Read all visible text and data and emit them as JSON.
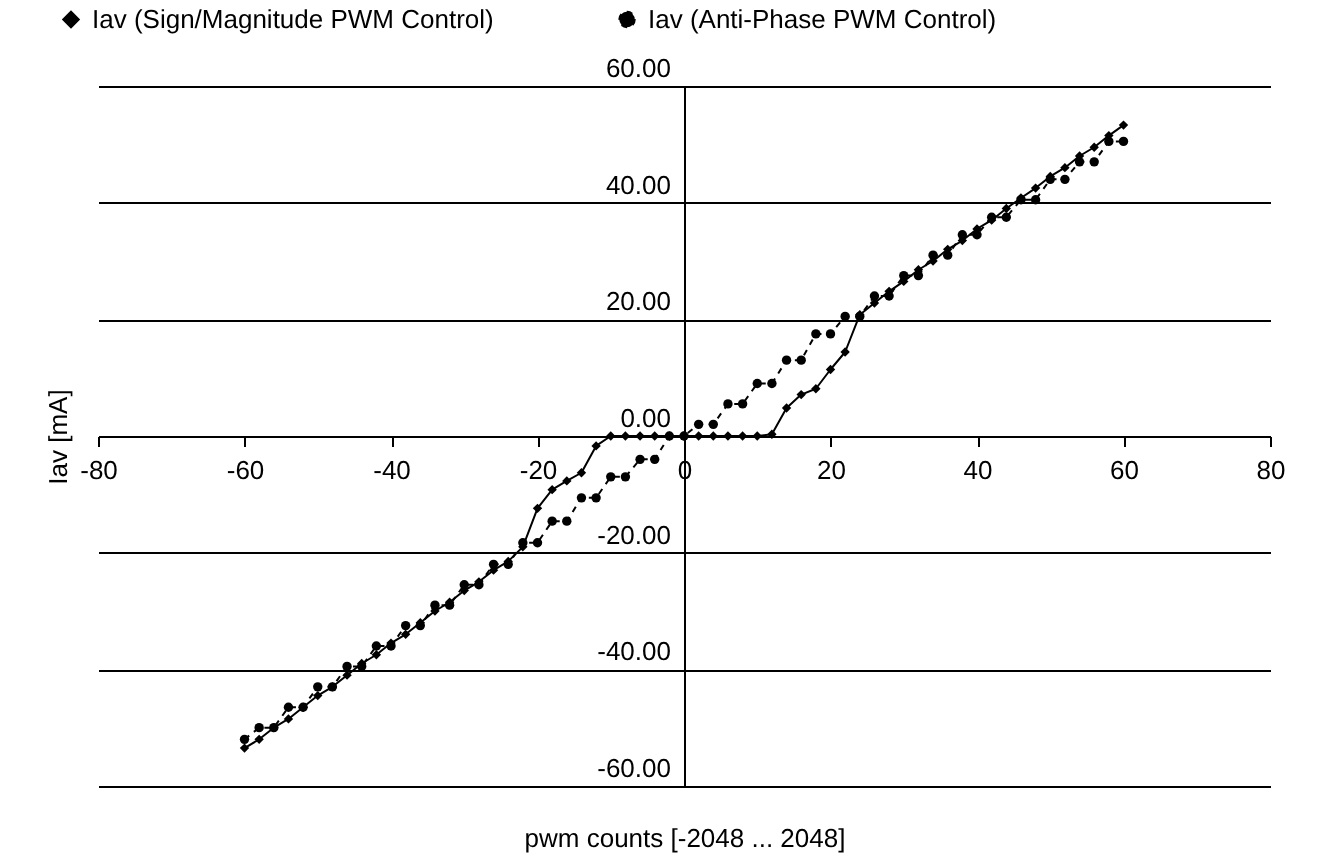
{
  "chart_data": {
    "type": "line",
    "xlabel": "pwm counts [-2048 ... 2048]",
    "ylabel": "Iav [mA]",
    "x": [
      -60,
      -58,
      -56,
      -54,
      -52,
      -50,
      -48,
      -46,
      -44,
      -42,
      -40,
      -38,
      -36,
      -34,
      -32,
      -30,
      -28,
      -26,
      -24,
      -22,
      -20,
      -18,
      -16,
      -14,
      -12,
      -10,
      -8,
      -6,
      -4,
      -2,
      0,
      2,
      4,
      6,
      8,
      10,
      12,
      14,
      16,
      18,
      20,
      22,
      24,
      26,
      28,
      30,
      32,
      34,
      36,
      38,
      40,
      42,
      44,
      46,
      48,
      50,
      52,
      54,
      56,
      58,
      60
    ],
    "series": [
      {
        "name": "Iav (Sign/Magnitude PWM Control)",
        "color": "#000000",
        "marker": "diamond",
        "line_style": "solid",
        "values": [
          -53.5,
          -52,
          -50,
          -48.5,
          -46.5,
          -44.5,
          -43,
          -41,
          -39,
          -37.5,
          -35.5,
          -34,
          -32,
          -30,
          -28.5,
          -26.5,
          -25,
          -23,
          -21.5,
          -19,
          -12.4,
          -9.2,
          -7.7,
          -6.3,
          -1.7,
          0,
          0,
          0,
          0,
          0,
          0,
          0,
          0,
          0,
          0,
          0,
          0.3,
          4.8,
          7.1,
          8.1,
          11.4,
          14.4,
          20.8,
          22.8,
          24.8,
          26.5,
          28.5,
          30,
          32,
          33.5,
          35.5,
          37,
          39,
          40.8,
          42.5,
          44.5,
          46,
          48,
          49.5,
          51.5,
          53.3
        ]
      },
      {
        "name": "Iav (Anti-Phase PWM Control)",
        "color": "#000000",
        "marker": "circle",
        "line_style": "dashed",
        "values": [
          -52,
          -50,
          -50,
          -46.5,
          -46.5,
          -43,
          -43,
          -39.5,
          -39.5,
          -36,
          -36,
          -32.5,
          -32.5,
          -29,
          -29,
          -25.5,
          -25.5,
          -22,
          -22,
          -18.3,
          -18.3,
          -14.6,
          -14.6,
          -10.6,
          -10.6,
          -7,
          -7,
          -4,
          -4,
          0,
          0,
          2,
          2,
          5.5,
          5.5,
          9,
          9,
          13,
          13,
          17.5,
          17.5,
          20.5,
          20.5,
          24,
          24,
          27.5,
          27.5,
          31,
          31,
          34.5,
          34.5,
          37.5,
          37.5,
          40.5,
          40.5,
          44,
          44,
          47,
          47,
          50.5,
          50.5
        ]
      }
    ],
    "xlim": [
      -80,
      80
    ],
    "xticks": [
      -80,
      -60,
      -40,
      -20,
      0,
      20,
      40,
      60,
      80
    ],
    "ylim": [
      -60,
      60
    ],
    "yticks": [
      {
        "value": -60,
        "label": "-60.00"
      },
      {
        "value": -40,
        "label": "-40.00"
      },
      {
        "value": -20,
        "label": "-20.00"
      },
      {
        "value": 0,
        "label": "0.00"
      },
      {
        "value": 20,
        "label": "20.00"
      },
      {
        "value": 40,
        "label": "40.00"
      },
      {
        "value": 60,
        "label": "60.00"
      }
    ],
    "grid": "y",
    "legend": "top"
  }
}
